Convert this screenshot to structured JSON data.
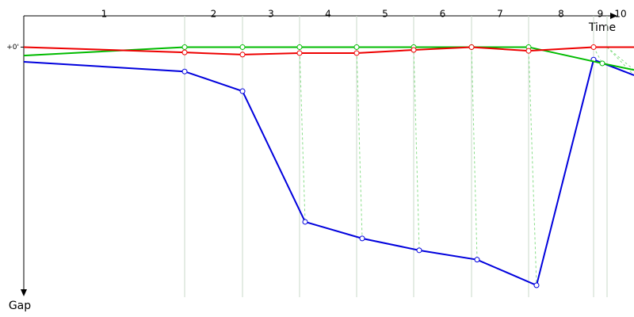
{
  "chart_data": {
    "type": "line",
    "x_label": "Time",
    "y_label": "Gap",
    "xlim": [
      0,
      770
    ],
    "ylim": [
      -10,
      80
    ],
    "xticks": [
      203,
      276,
      348,
      420,
      492,
      565,
      637,
      719,
      736
    ],
    "categories": [
      "1",
      "2",
      "3",
      "4",
      "5",
      "6",
      "7",
      "8",
      "9",
      "10"
    ],
    "yticks": [
      {
        "value": 0,
        "label": "+0'"
      }
    ],
    "grid": true,
    "series": [
      {
        "color": "#0000dd",
        "x": [
          0,
          203,
          276,
          355,
          427,
          499,
          572,
          647,
          719,
          770
        ],
        "values": [
          4.7,
          7.8,
          14.1,
          55.9,
          61.2,
          65,
          68,
          76.2,
          4,
          9
        ]
      },
      {
        "color": "#00bb00",
        "x": [
          0,
          203,
          276,
          348,
          420,
          492,
          565,
          637,
          730,
          770
        ],
        "values": [
          2.7,
          0,
          0,
          0,
          0,
          0,
          0,
          0,
          5.2,
          7.3
        ]
      },
      {
        "color": "#ee0000",
        "x": [
          0,
          203,
          276,
          348,
          420,
          492,
          565,
          637,
          719,
          770
        ],
        "values": [
          0,
          1.7,
          2.4,
          1.9,
          1.9,
          0.9,
          0,
          1.2,
          0,
          0
        ]
      }
    ]
  }
}
